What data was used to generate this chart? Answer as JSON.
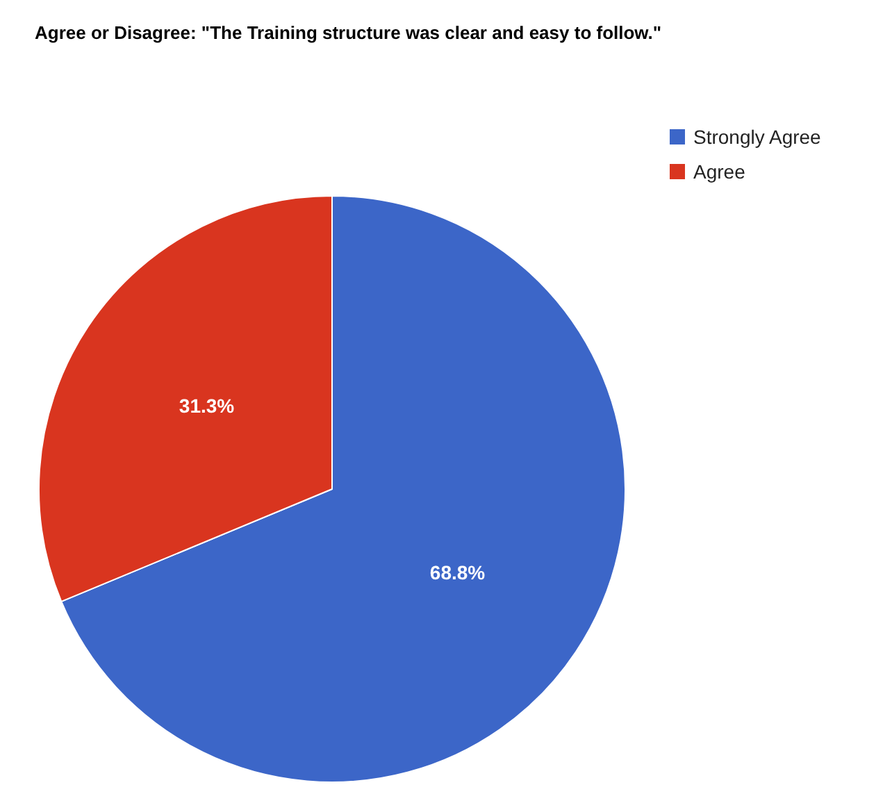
{
  "chart_data": {
    "type": "pie",
    "title": "Agree or Disagree: \"The Training structure was clear and easy to follow.\"",
    "categories": [
      "Strongly Agree",
      "Agree"
    ],
    "values": [
      68.8,
      31.3
    ],
    "colors": [
      "#3c66c8",
      "#d9351f"
    ],
    "value_labels": [
      "68.8%",
      "31.3%"
    ],
    "legend": "top right"
  }
}
